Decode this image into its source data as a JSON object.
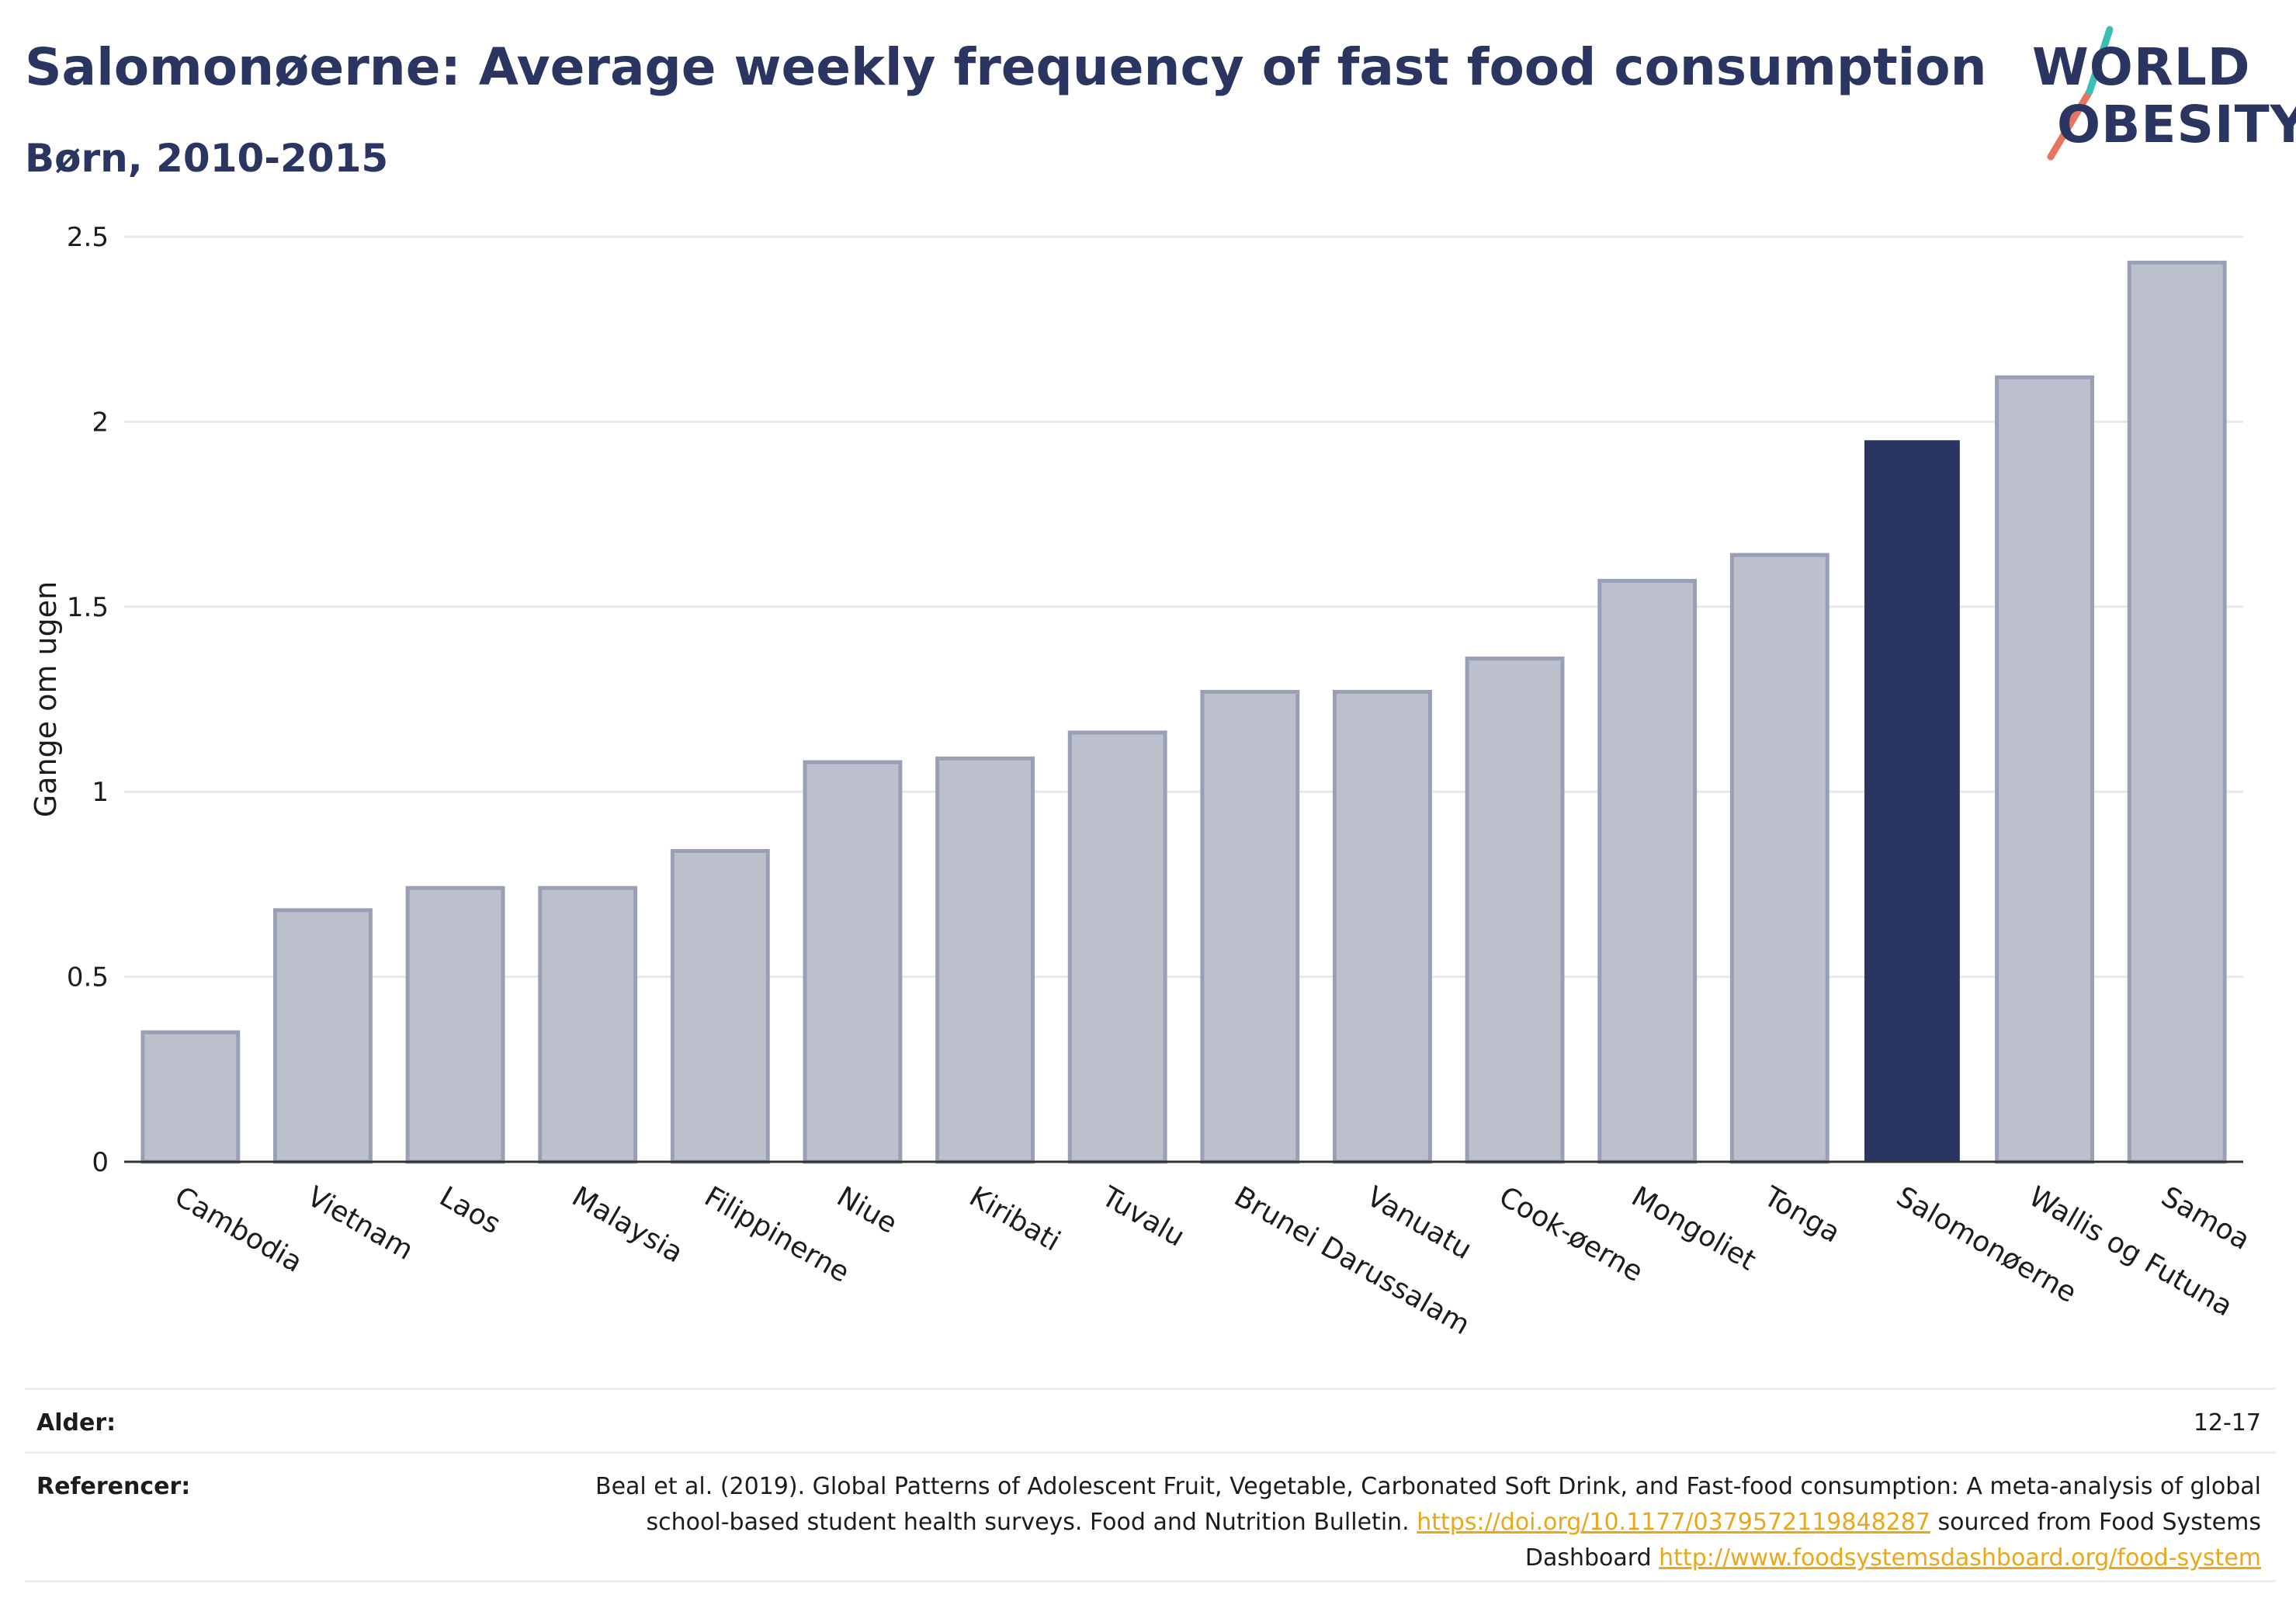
{
  "header": {
    "title": "Salomonøerne: Average weekly frequency of fast food consumption",
    "subtitle": "Børn, 2010-2015"
  },
  "logo": {
    "line1": "WORLD",
    "line2": "OBESITY",
    "slash_colors": [
      "#e8745f",
      "#3bbfb5"
    ]
  },
  "colors": {
    "highlight": "#2a3561",
    "bar": "#bcc0cd",
    "bar_border": "#9aa0b4",
    "text_dark": "#2a3561",
    "link": "#e8a81a"
  },
  "chart_data": {
    "type": "bar",
    "title": "Salomonøerne: Average weekly frequency of fast food consumption",
    "subtitle": "Børn, 2010-2015",
    "xlabel": "",
    "ylabel": "Gange om ugen",
    "ylim": [
      0,
      2.5
    ],
    "yticks": [
      0,
      0.5,
      1,
      1.5,
      2,
      2.5
    ],
    "ytick_labels": [
      "0",
      "0.5",
      "1",
      "1.5",
      "2",
      "2.5"
    ],
    "grid": true,
    "highlight": "Salomonøerne",
    "categories": [
      "Cambodia",
      "Vietnam",
      "Laos",
      "Malaysia",
      "Filippinerne",
      "Niue",
      "Kiribati",
      "Tuvalu",
      "Brunei Darussalam",
      "Vanuatu",
      "Cook-øerne",
      "Mongoliet",
      "Tonga",
      "Salomonøerne",
      "Wallis og Futuna",
      "Samoa"
    ],
    "values": [
      0.35,
      0.68,
      0.74,
      0.74,
      0.84,
      1.08,
      1.09,
      1.16,
      1.27,
      1.27,
      1.36,
      1.57,
      1.64,
      1.95,
      2.12,
      2.43
    ]
  },
  "footer": {
    "age_label": "Alder:",
    "age_value": "12-17",
    "refs_label": "Referencer:",
    "refs_text1": "Beal et al. (2019). Global Patterns of Adolescent Fruit, Vegetable, Carbonated Soft Drink, and Fast-food consumption: A meta-analysis of global school-based student health surveys. Food and Nutrition Bulletin. ",
    "refs_link1": "https://doi.org/10.1177/0379572119848287",
    "refs_text2": " sourced from Food Systems Dashboard ",
    "refs_link2": "http://www.foodsystemsdashboard.org/food-system"
  }
}
